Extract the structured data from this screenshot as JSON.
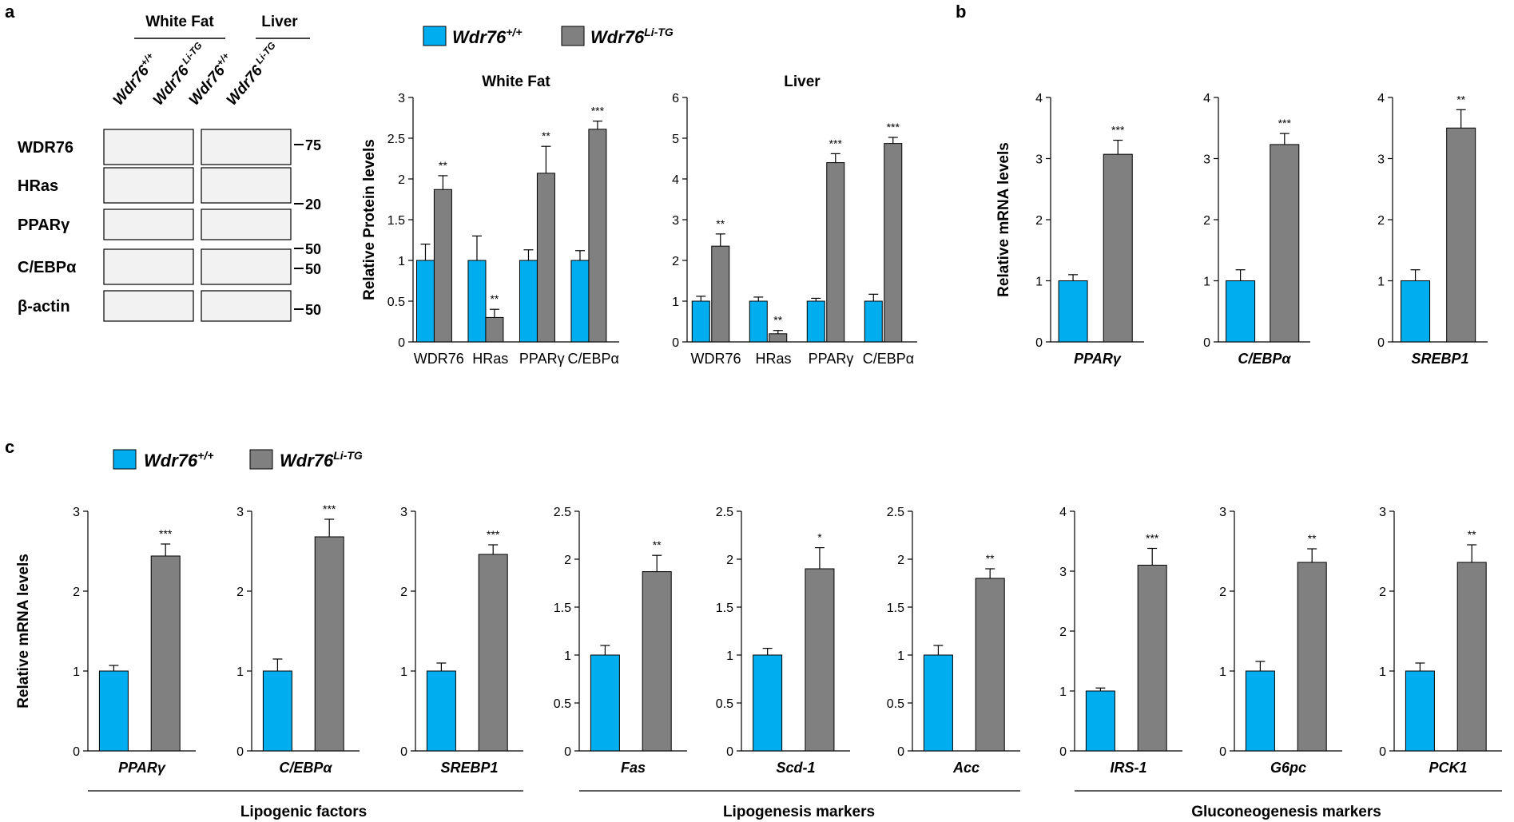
{
  "panel_labels": {
    "a": "a",
    "b": "b",
    "c": "c"
  },
  "colors": {
    "wt": "#00AEEF",
    "tg": "#808080",
    "axis": "#000000"
  },
  "legend": {
    "wt": {
      "base": "Wdr76",
      "sup": "+/+"
    },
    "tg": {
      "base": "Wdr76",
      "sup": "Li-TG"
    }
  },
  "western_blot": {
    "tissues": [
      "White Fat",
      "Liver"
    ],
    "lanes": [
      {
        "base": "Wdr76",
        "sup": "+/+"
      },
      {
        "base": "Wdr76",
        "sup": " Li-TG"
      },
      {
        "base": "Wdr76",
        "sup": "+/+"
      },
      {
        "base": "Wdr76",
        "sup": " Li-TG"
      }
    ],
    "proteins": [
      "WDR76",
      "HRas",
      "PPARγ",
      "C/EBPα",
      "β-actin"
    ],
    "markers": [
      "75",
      "20",
      "50",
      "50",
      "50"
    ]
  },
  "group_labels": {
    "c1": "Lipogenic  factors",
    "c2": "Lipogenesis  markers",
    "c3": "Gluconeogenesis  markers"
  },
  "chart_data": [
    {
      "id": "a-whitefat",
      "type": "bar",
      "title": "White Fat",
      "ylabel": "Relative  Protein  levels",
      "xlabel": "",
      "categories": [
        "WDR76",
        "HRas",
        "PPARγ",
        "C/EBPα"
      ],
      "ylim": [
        0,
        3
      ],
      "yticks": [
        "0",
        "0.5",
        "1",
        "1.5",
        "2",
        "2.5",
        "3"
      ],
      "italic": false,
      "series": [
        {
          "name": "Wdr76+/+",
          "values": [
            1,
            1,
            1,
            1
          ],
          "errors": [
            0.2,
            0.3,
            0.13,
            0.12
          ]
        },
        {
          "name": "Wdr76Li-TG",
          "values": [
            1.87,
            0.3,
            2.07,
            2.61
          ],
          "errors": [
            0.17,
            0.1,
            0.33,
            0.1
          ]
        }
      ],
      "significance": [
        "**",
        "**",
        "**",
        "***"
      ]
    },
    {
      "id": "a-liver",
      "type": "bar",
      "title": "Liver",
      "ylabel": "",
      "xlabel": "",
      "categories": [
        "WDR76",
        "HRas",
        "PPARγ",
        "C/EBPα"
      ],
      "ylim": [
        0,
        6
      ],
      "yticks": [
        "0",
        "1",
        "2",
        "3",
        "4",
        "5",
        "6"
      ],
      "italic": false,
      "series": [
        {
          "name": "Wdr76+/+",
          "values": [
            1,
            1,
            1,
            1
          ],
          "errors": [
            0.12,
            0.1,
            0.07,
            0.17
          ]
        },
        {
          "name": "Wdr76Li-TG",
          "values": [
            2.35,
            0.2,
            4.4,
            4.87
          ],
          "errors": [
            0.3,
            0.08,
            0.22,
            0.15
          ]
        }
      ],
      "significance": [
        "**",
        "**",
        "***",
        "***"
      ]
    },
    {
      "id": "b-ppar",
      "type": "bar",
      "ylabel": "Relative  mRNA  levels",
      "categories": [
        "PPARγ"
      ],
      "ylim": [
        0,
        4
      ],
      "yticks": [
        "0",
        "1",
        "2",
        "3",
        "4"
      ],
      "italic": true,
      "series": [
        {
          "name": "Wdr76+/+",
          "values": [
            1
          ],
          "errors": [
            0.1
          ]
        },
        {
          "name": "Wdr76Li-TG",
          "values": [
            3.07
          ],
          "errors": [
            0.23
          ]
        }
      ],
      "significance": [
        "***"
      ]
    },
    {
      "id": "b-cebp",
      "type": "bar",
      "ylabel": "",
      "categories": [
        "C/EBPα"
      ],
      "ylim": [
        0,
        4
      ],
      "yticks": [
        "0",
        "1",
        "2",
        "3",
        "4"
      ],
      "italic": true,
      "series": [
        {
          "name": "Wdr76+/+",
          "values": [
            1
          ],
          "errors": [
            0.18
          ]
        },
        {
          "name": "Wdr76Li-TG",
          "values": [
            3.23
          ],
          "errors": [
            0.18
          ]
        }
      ],
      "significance": [
        "***"
      ]
    },
    {
      "id": "b-srebp",
      "type": "bar",
      "ylabel": "",
      "categories": [
        "SREBP1"
      ],
      "ylim": [
        0,
        4
      ],
      "yticks": [
        "0",
        "1",
        "2",
        "3",
        "4"
      ],
      "italic": true,
      "series": [
        {
          "name": "Wdr76+/+",
          "values": [
            1
          ],
          "errors": [
            0.18
          ]
        },
        {
          "name": "Wdr76Li-TG",
          "values": [
            3.5
          ],
          "errors": [
            0.3
          ]
        }
      ],
      "significance": [
        "**"
      ]
    },
    {
      "id": "c-ppar",
      "type": "bar",
      "ylabel": "Relative  mRNA  levels",
      "categories": [
        "PPARγ"
      ],
      "ylim": [
        0,
        3
      ],
      "yticks": [
        "0",
        "1",
        "2",
        "3"
      ],
      "italic": true,
      "series": [
        {
          "name": "Wdr76+/+",
          "values": [
            1
          ],
          "errors": [
            0.07
          ]
        },
        {
          "name": "Wdr76Li-TG",
          "values": [
            2.44
          ],
          "errors": [
            0.15
          ]
        }
      ],
      "significance": [
        "***"
      ]
    },
    {
      "id": "c-cebp",
      "type": "bar",
      "ylabel": "",
      "categories": [
        "C/EBPα"
      ],
      "ylim": [
        0,
        3
      ],
      "yticks": [
        "0",
        "1",
        "2",
        "3"
      ],
      "italic": true,
      "series": [
        {
          "name": "Wdr76+/+",
          "values": [
            1
          ],
          "errors": [
            0.15
          ]
        },
        {
          "name": "Wdr76Li-TG",
          "values": [
            2.68
          ],
          "errors": [
            0.22
          ]
        }
      ],
      "significance": [
        "***"
      ]
    },
    {
      "id": "c-srebp",
      "type": "bar",
      "ylabel": "",
      "categories": [
        "SREBP1"
      ],
      "ylim": [
        0,
        3
      ],
      "yticks": [
        "0",
        "1",
        "2",
        "3"
      ],
      "italic": true,
      "series": [
        {
          "name": "Wdr76+/+",
          "values": [
            1
          ],
          "errors": [
            0.1
          ]
        },
        {
          "name": "Wdr76Li-TG",
          "values": [
            2.46
          ],
          "errors": [
            0.12
          ]
        }
      ],
      "significance": [
        "***"
      ]
    },
    {
      "id": "c-fas",
      "type": "bar",
      "ylabel": "",
      "categories": [
        "Fas"
      ],
      "ylim": [
        0,
        2.5
      ],
      "yticks": [
        "0",
        "0.5",
        "1",
        "1.5",
        "2",
        "2.5"
      ],
      "italic": true,
      "series": [
        {
          "name": "Wdr76+/+",
          "values": [
            1
          ],
          "errors": [
            0.1
          ]
        },
        {
          "name": "Wdr76Li-TG",
          "values": [
            1.87
          ],
          "errors": [
            0.17
          ]
        }
      ],
      "significance": [
        "**"
      ]
    },
    {
      "id": "c-scd1",
      "type": "bar",
      "ylabel": "",
      "categories": [
        "Scd-1"
      ],
      "ylim": [
        0,
        2.5
      ],
      "yticks": [
        "0",
        "0.5",
        "1",
        "1.5",
        "2",
        "2.5"
      ],
      "italic": true,
      "series": [
        {
          "name": "Wdr76+/+",
          "values": [
            1
          ],
          "errors": [
            0.07
          ]
        },
        {
          "name": "Wdr76Li-TG",
          "values": [
            1.9
          ],
          "errors": [
            0.22
          ]
        }
      ],
      "significance": [
        "*"
      ]
    },
    {
      "id": "c-acc",
      "type": "bar",
      "ylabel": "",
      "categories": [
        "Acc"
      ],
      "ylim": [
        0,
        2.5
      ],
      "yticks": [
        "0",
        "0.5",
        "1",
        "1.5",
        "2",
        "2.5"
      ],
      "italic": true,
      "series": [
        {
          "name": "Wdr76+/+",
          "values": [
            1
          ],
          "errors": [
            0.1
          ]
        },
        {
          "name": "Wdr76Li-TG",
          "values": [
            1.8
          ],
          "errors": [
            0.1
          ]
        }
      ],
      "significance": [
        "**"
      ]
    },
    {
      "id": "c-irs1",
      "type": "bar",
      "ylabel": "",
      "categories": [
        "IRS-1"
      ],
      "ylim": [
        0,
        4
      ],
      "yticks": [
        "0",
        "1",
        "2",
        "3",
        "4"
      ],
      "italic": true,
      "series": [
        {
          "name": "Wdr76+/+",
          "values": [
            1
          ],
          "errors": [
            0.05
          ]
        },
        {
          "name": "Wdr76Li-TG",
          "values": [
            3.1
          ],
          "errors": [
            0.28
          ]
        }
      ],
      "significance": [
        "***"
      ]
    },
    {
      "id": "c-g6pc",
      "type": "bar",
      "ylabel": "",
      "categories": [
        "G6pc"
      ],
      "ylim": [
        0,
        3
      ],
      "yticks": [
        "0",
        "1",
        "2",
        "3"
      ],
      "italic": true,
      "series": [
        {
          "name": "Wdr76+/+",
          "values": [
            1
          ],
          "errors": [
            0.12
          ]
        },
        {
          "name": "Wdr76Li-TG",
          "values": [
            2.36
          ],
          "errors": [
            0.17
          ]
        }
      ],
      "significance": [
        "**"
      ]
    },
    {
      "id": "c-pck1",
      "type": "bar",
      "ylabel": "",
      "categories": [
        "PCK1"
      ],
      "ylim": [
        0,
        3
      ],
      "yticks": [
        "0",
        "1",
        "2",
        "3"
      ],
      "italic": true,
      "series": [
        {
          "name": "Wdr76+/+",
          "values": [
            1
          ],
          "errors": [
            0.1
          ]
        },
        {
          "name": "Wdr76Li-TG",
          "values": [
            2.36
          ],
          "errors": [
            0.22
          ]
        }
      ],
      "significance": [
        "**"
      ]
    }
  ]
}
